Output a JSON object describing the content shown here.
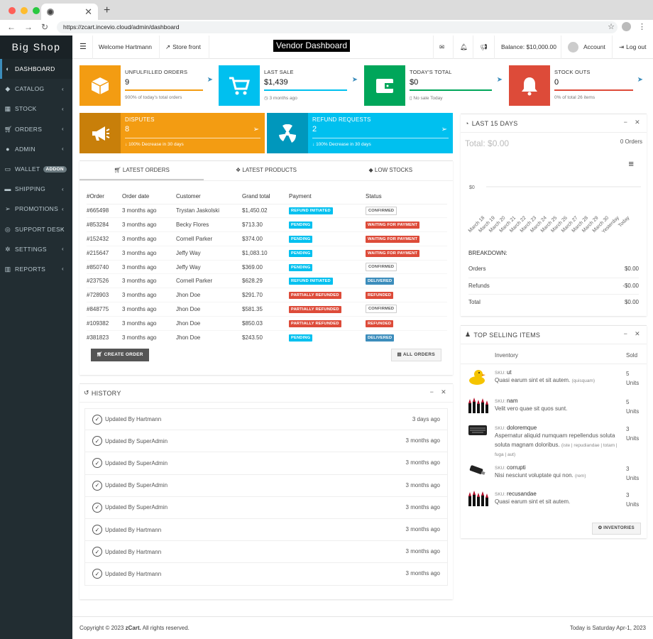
{
  "browser": {
    "url": "https://zcart.incevio.cloud/admin/dashboard"
  },
  "sidebar": {
    "logo": "Big Shop",
    "items": [
      {
        "label": "DASHBOARD",
        "icon": "dashboard-icon"
      },
      {
        "label": "CATALOG",
        "icon": "tag-icon"
      },
      {
        "label": "STOCK",
        "icon": "cubes-icon"
      },
      {
        "label": "ORDERS",
        "icon": "cart-icon"
      },
      {
        "label": "ADMIN",
        "icon": "user-icon"
      },
      {
        "label": "WALLET",
        "icon": "wallet-icon",
        "badge": "ADDON"
      },
      {
        "label": "SHIPPING",
        "icon": "truck-icon"
      },
      {
        "label": "PROMOTIONS",
        "icon": "paper-plane-icon"
      },
      {
        "label": "SUPPORT DESK",
        "icon": "lifebuoy-icon"
      },
      {
        "label": "SETTINGS",
        "icon": "gears-icon"
      },
      {
        "label": "REPORTS",
        "icon": "map-icon"
      }
    ]
  },
  "topbar": {
    "welcome": "Welcome Hartmann",
    "store_front": "Store front",
    "title": "Vendor Dashboard",
    "balance": "Balance: $10,000.00",
    "account": "Account",
    "logout": "Log out"
  },
  "stats": [
    {
      "label": "UNFULFILLED ORDERS",
      "value": "9",
      "sub": "900% of today's total orders",
      "color": "#f39c12"
    },
    {
      "label": "LAST SALE",
      "value": "$1,439",
      "sub": "3 months ago",
      "color": "#00c0ef"
    },
    {
      "label": "TODAY'S TOTAL",
      "value": "$0",
      "sub": "No sale Today",
      "color": "#00a65a"
    },
    {
      "label": "STOCK OUTS",
      "value": "0",
      "sub": "0% of total 26 items",
      "color": "#dd4b39"
    }
  ],
  "disputes": {
    "label": "DISPUTES",
    "value": "8",
    "sub": "100% Decrease in 30 days"
  },
  "refunds": {
    "label": "REFUND REQUESTS",
    "value": "2",
    "sub": "100% Decrease in 30 days"
  },
  "orders_panel": {
    "tabs": [
      "LATEST ORDERS",
      "LATEST PRODUCTS",
      "LOW STOCKS"
    ],
    "headers": [
      "#Order",
      "Order date",
      "Customer",
      "Grand total",
      "Payment",
      "Status"
    ],
    "rows": [
      [
        "#665498",
        "3 months ago",
        "Trystan Jaskolski",
        "$1,450.02",
        "REFUND INITIATED",
        "CONFIRMED"
      ],
      [
        "#853284",
        "3 months ago",
        "Becky Flores",
        "$713.30",
        "PENDING",
        "WAITING FOR PAYMENT"
      ],
      [
        "#152432",
        "3 months ago",
        "Cornell Parker",
        "$374.00",
        "PENDING",
        "WAITING FOR PAYMENT"
      ],
      [
        "#215647",
        "3 months ago",
        "Jeffy Way",
        "$1,083.10",
        "PENDING",
        "WAITING FOR PAYMENT"
      ],
      [
        "#850740",
        "3 months ago",
        "Jeffy Way",
        "$369.00",
        "PENDING",
        "CONFIRMED"
      ],
      [
        "#237526",
        "3 months ago",
        "Cornell Parker",
        "$628.29",
        "REFUND INITIATED",
        "DELIVERED"
      ],
      [
        "#728903",
        "3 months ago",
        "Jhon Doe",
        "$291.70",
        "PARTIALLY REFUNDED",
        "REFUNDED"
      ],
      [
        "#848775",
        "3 months ago",
        "Jhon Doe",
        "$581.35",
        "PARTIALLY REFUNDED",
        "CONFIRMED"
      ],
      [
        "#109382",
        "3 months ago",
        "Jhon Doe",
        "$850.03",
        "PARTIALLY REFUNDED",
        "REFUNDED"
      ],
      [
        "#381823",
        "3 months ago",
        "Jhon Doe",
        "$243.50",
        "PENDING",
        "DELIVERED"
      ]
    ],
    "create_order": "CREATE ORDER",
    "all_orders": "ALL ORDERS"
  },
  "history": {
    "title": "HISTORY",
    "items": [
      {
        "text": "Updated By Hartmann",
        "time": "3 days ago"
      },
      {
        "text": "Updated By SuperAdmin",
        "time": "3 months ago"
      },
      {
        "text": "Updated By SuperAdmin",
        "time": "3 months ago"
      },
      {
        "text": "Updated By SuperAdmin",
        "time": "3 months ago"
      },
      {
        "text": "Updated By SuperAdmin",
        "time": "3 months ago"
      },
      {
        "text": "Updated By Hartmann",
        "time": "3 months ago"
      },
      {
        "text": "Updated By Hartmann",
        "time": "3 months ago"
      },
      {
        "text": "Updated By Hartmann",
        "time": "3 months ago"
      }
    ]
  },
  "last15": {
    "title": "LAST 15 DAYS",
    "total": "Total: $0.00",
    "orders_count": "0 Orders",
    "breakdown_title": "BREAKDOWN:",
    "breakdown": [
      {
        "label": "Orders",
        "value": "$0.00"
      },
      {
        "label": "Refunds",
        "value": "-$0.00"
      },
      {
        "label": "Total",
        "value": "$0.00"
      }
    ]
  },
  "chart_data": {
    "type": "line",
    "x": [
      "March 18",
      "March 19",
      "March 20",
      "March 21",
      "March 22",
      "March 23",
      "March 24",
      "March 25",
      "March 26",
      "March 27",
      "March 28",
      "March 29",
      "March 30",
      "Yesterday",
      "Today"
    ],
    "series": [
      {
        "values": [
          0,
          0,
          0,
          0,
          0,
          0,
          0,
          0,
          0,
          0,
          0,
          0,
          0,
          0,
          0
        ]
      }
    ],
    "yticks": [
      "$0"
    ],
    "title": "",
    "xlabel": "",
    "ylabel": ""
  },
  "top_selling": {
    "title": "TOP SELLING ITEMS",
    "col_inventory": "Inventory",
    "col_sold": "Sold",
    "items": [
      {
        "sku": "ut",
        "desc": "Quasi earum sint et sit autem.",
        "tags": "(quisquam)",
        "sold": "5",
        "unit": "Units",
        "icon": "rubber-duck-image"
      },
      {
        "sku": "nam",
        "desc": "Velit vero quae sit quos sunt.",
        "tags": "",
        "sold": "5",
        "unit": "Units",
        "icon": "lipsticks-image"
      },
      {
        "sku": "doloremque",
        "desc": "Aspernatur aliquid numquam repellendus soluta soluta magnam doloribus.",
        "tags": "(iste | repudiandae | totam | fuga | aut)",
        "sold": "3",
        "unit": "Units",
        "icon": "keyboard-image"
      },
      {
        "sku": "corrupti",
        "desc": "Nisi nesciunt voluptate qui non.",
        "tags": "(rem)",
        "sold": "3",
        "unit": "Units",
        "icon": "usb-drive-image"
      },
      {
        "sku": "recusandae",
        "desc": "Quasi earum sint et sit autem.",
        "tags": "",
        "sold": "3",
        "unit": "Units",
        "icon": "lipsticks-image"
      }
    ],
    "inventories_button": "INVENTORIES"
  },
  "footer": {
    "copyright_prefix": "Copyright © 2023 ",
    "brand": "zCart.",
    "copyright_suffix": " All rights reserved.",
    "date": "Today is Saturday Apr-1, 2023"
  }
}
